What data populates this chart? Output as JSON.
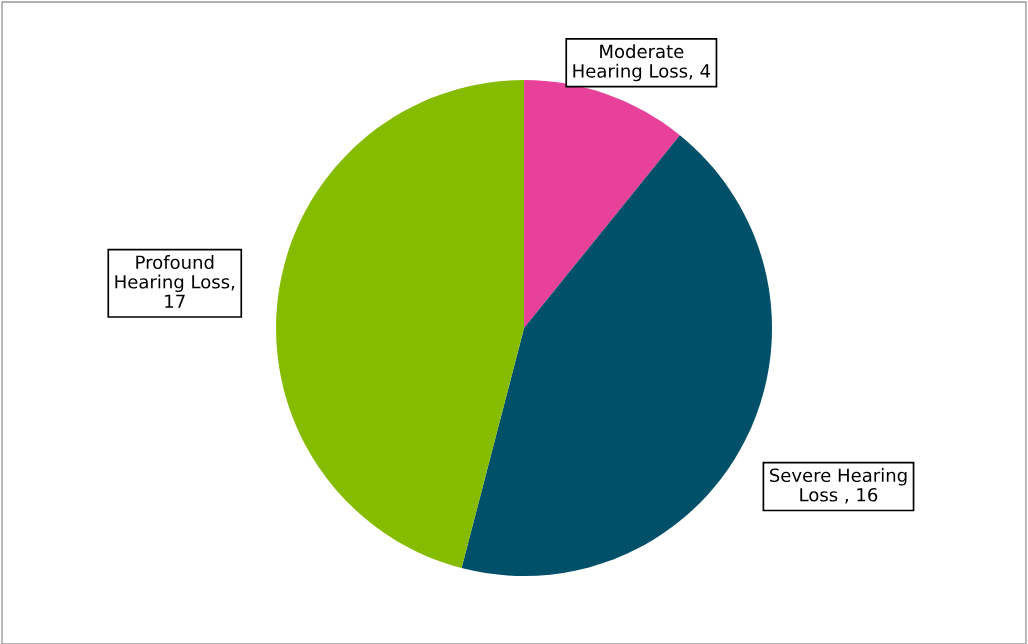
{
  "chart_data": {
    "type": "pie",
    "categories": [
      "Moderate\nHearing Loss, 4",
      "Severe Hearing\nLoss , 16",
      "Profound\nHearing Loss,\n17"
    ],
    "values": [
      4,
      16,
      17
    ],
    "colors": [
      "#e8419a",
      "#00506a",
      "#86bc00"
    ],
    "legend": false
  }
}
